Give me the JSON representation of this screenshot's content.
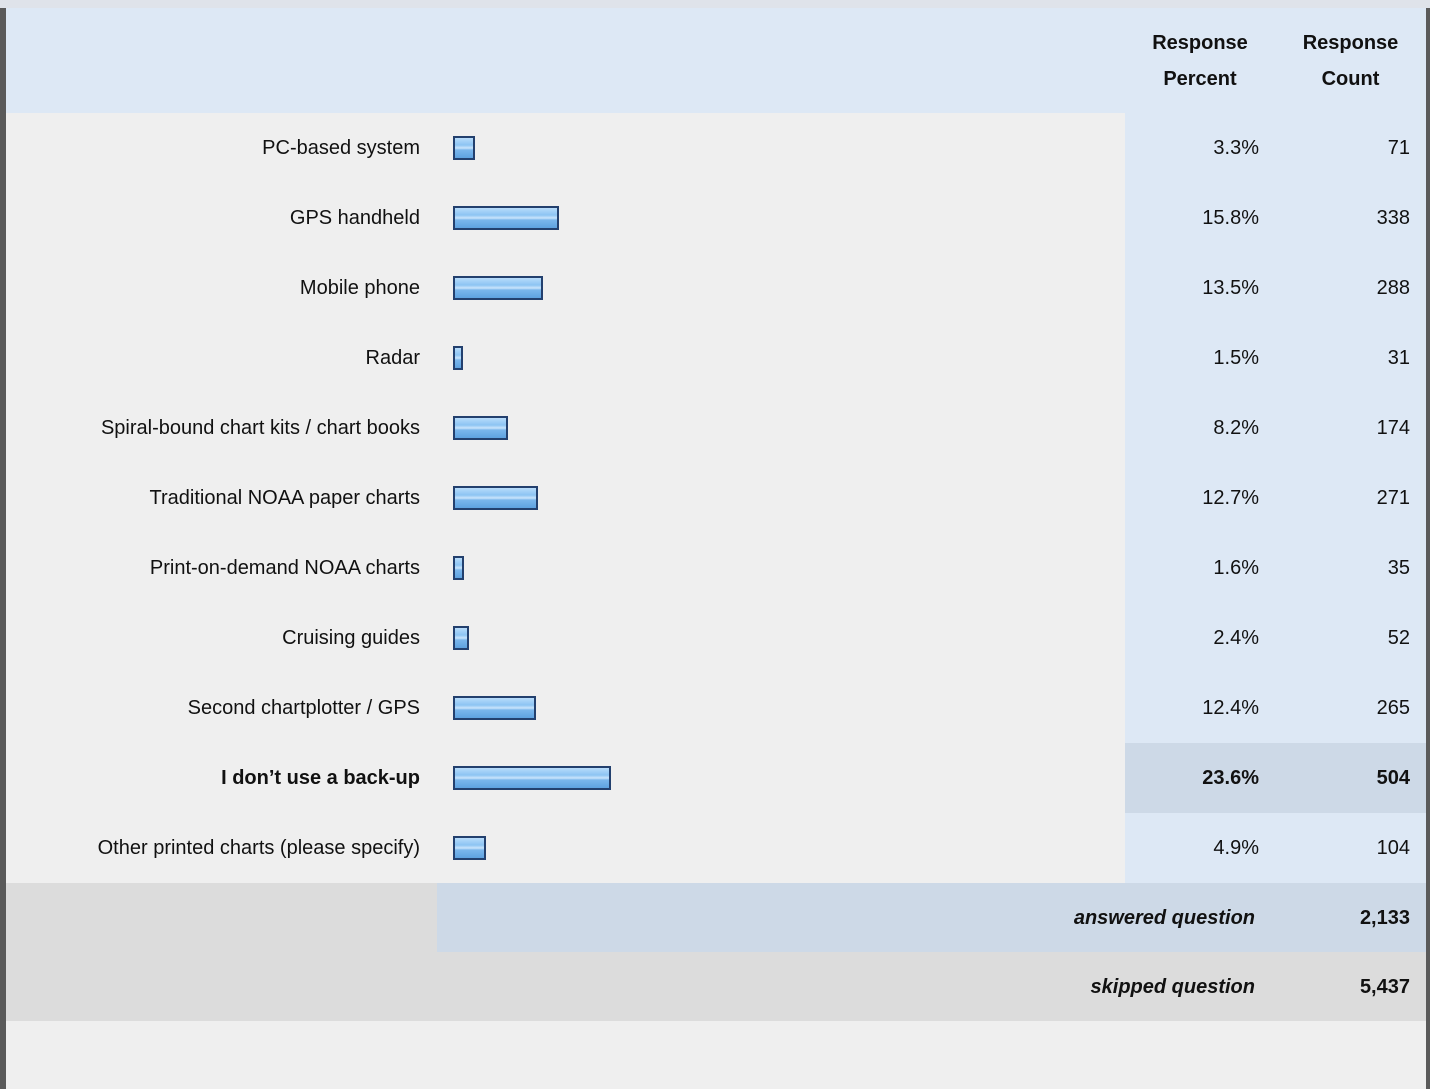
{
  "chart_data": {
    "type": "bar",
    "orientation": "horizontal",
    "columns": [
      "Response Percent",
      "Response Count"
    ],
    "categories": [
      "PC-based system",
      "GPS handheld",
      "Mobile phone",
      "Radar",
      "Spiral-bound chart kits / chart books",
      "Traditional NOAA paper charts",
      "Print-on-demand NOAA charts",
      "Cruising guides",
      "Second chartplotter / GPS",
      "I don’t use a back-up",
      "Other printed charts (please specify)"
    ],
    "values": [
      3.3,
      15.8,
      13.5,
      1.5,
      8.2,
      12.7,
      1.6,
      2.4,
      12.4,
      23.6,
      4.9
    ],
    "value_labels": [
      "3.3%",
      "15.8%",
      "13.5%",
      "1.5%",
      "8.2%",
      "12.7%",
      "1.6%",
      "2.4%",
      "12.4%",
      "23.6%",
      "4.9%"
    ],
    "counts": [
      71,
      338,
      288,
      31,
      174,
      271,
      35,
      52,
      265,
      504,
      104
    ],
    "highlight_index": 9,
    "color": "#7fbcf0",
    "answered": {
      "label": "answered question",
      "count": "2,133"
    },
    "skipped": {
      "label": "skipped question",
      "count": "5,437"
    }
  }
}
